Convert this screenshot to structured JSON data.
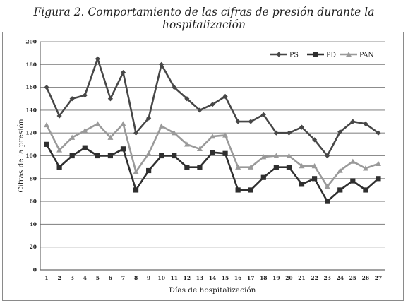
{
  "figure": {
    "caption": "Figura 2. Comportamiento de las cifras de presión durante la hospitalización"
  },
  "chart_data": {
    "type": "line",
    "title": "",
    "xlabel": "Días de hospitalización",
    "ylabel": "Cifras de la presión",
    "ylim": [
      0,
      200
    ],
    "yticks": [
      0,
      20,
      40,
      60,
      80,
      100,
      120,
      140,
      160,
      180,
      200
    ],
    "grid": "horizontal",
    "legend_position": "top-right",
    "x": [
      1,
      2,
      3,
      4,
      5,
      6,
      7,
      8,
      9,
      10,
      11,
      12,
      13,
      14,
      15,
      16,
      17,
      18,
      19,
      20,
      21,
      22,
      23,
      24,
      25,
      26,
      27
    ],
    "series": [
      {
        "name": "PS",
        "marker": "diamond",
        "color": "#474747",
        "values": [
          160,
          135,
          150,
          153,
          185,
          150,
          173,
          120,
          133,
          180,
          160,
          150,
          140,
          145,
          152,
          130,
          130,
          136,
          120,
          120,
          125,
          114,
          100,
          121,
          130,
          128,
          120
        ]
      },
      {
        "name": "PD",
        "marker": "square",
        "color": "#2f2f2f",
        "values": [
          110,
          90,
          100,
          107,
          100,
          100,
          106,
          70,
          87,
          100,
          100,
          90,
          90,
          103,
          102,
          70,
          70,
          81,
          90,
          90,
          75,
          80,
          60,
          70,
          78,
          70,
          80
        ]
      },
      {
        "name": "PAN",
        "marker": "triangle",
        "color": "#9a9a9a",
        "values": [
          127,
          105,
          116,
          122,
          128,
          116,
          128,
          86,
          102,
          126,
          120,
          110,
          106,
          117,
          118,
          90,
          90,
          99,
          100,
          100,
          91,
          91,
          73,
          87,
          95,
          89,
          93
        ]
      }
    ]
  }
}
